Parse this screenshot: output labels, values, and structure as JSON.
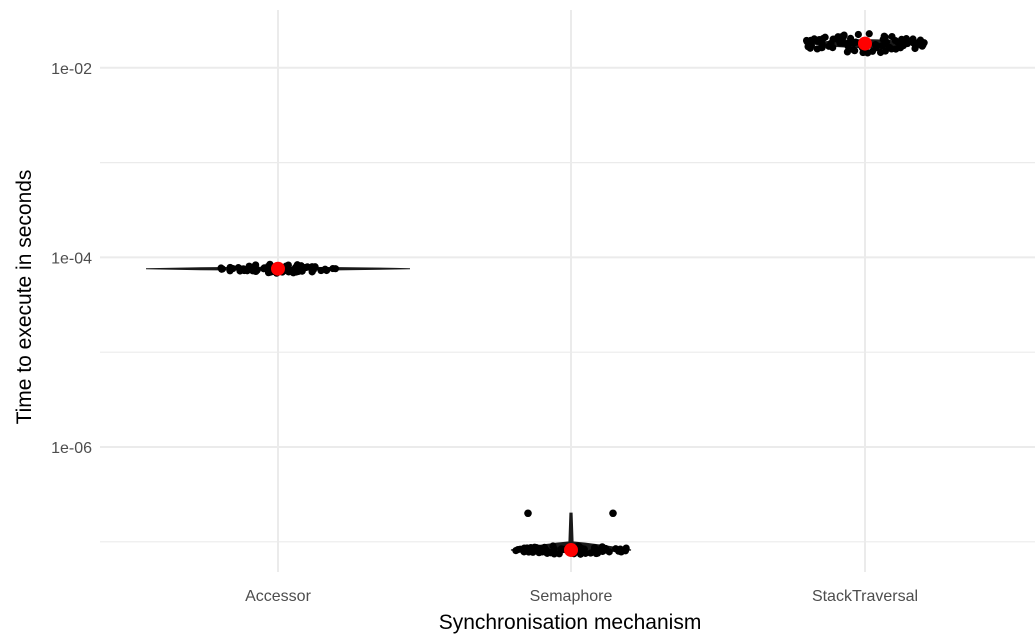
{
  "chart_data": {
    "type": "scatter",
    "subtype": "jitter-violin",
    "title": "",
    "xlabel": "Synchronisation mechanism",
    "ylabel": "Time to execute in seconds",
    "y_scale": "log10",
    "ylim": [
      5e-08,
      0.03
    ],
    "y_ticks": [
      {
        "value": 1e-06,
        "label": "1e-06"
      },
      {
        "value": 0.0001,
        "label": "1e-04"
      },
      {
        "value": 0.01,
        "label": "1e-02"
      }
    ],
    "y_minor_ticks": [
      1e-07,
      1e-05,
      0.001
    ],
    "categories": [
      "Accessor",
      "Semaphore",
      "StackTraversal"
    ],
    "mean_values": [
      7.6e-05,
      8.2e-08,
      0.018
    ],
    "outliers": [
      {
        "category": "Semaphore",
        "value": 2e-07
      },
      {
        "category": "Semaphore",
        "value": 2e-07
      }
    ],
    "grid": true,
    "legend": "none",
    "colors": {
      "points": "#000000",
      "mean": "#ff0000",
      "grid": "#ebebeb",
      "violin": "#1a1a1a"
    }
  }
}
